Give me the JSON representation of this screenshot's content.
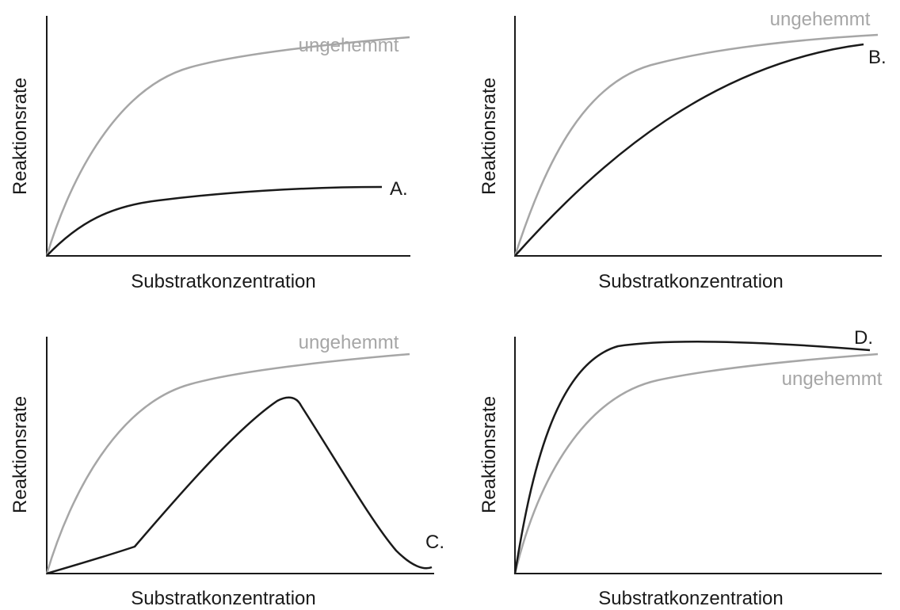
{
  "panels": [
    {
      "y_label": "Reaktionsrate",
      "x_label": "Substratkonzentration",
      "uninhibited_label": "ungehemmt",
      "curve_label": "A."
    },
    {
      "y_label": "Reaktionsrate",
      "x_label": "Substratkonzentration",
      "uninhibited_label": "ungehemmt",
      "curve_label": "B."
    },
    {
      "y_label": "Reaktionsrate",
      "x_label": "Substratkonzentration",
      "uninhibited_label": "ungehemmt",
      "curve_label": "C."
    },
    {
      "y_label": "Reaktionsrate",
      "x_label": "Substratkonzentration",
      "uninhibited_label": "ungehemmt",
      "curve_label": "D."
    }
  ]
}
